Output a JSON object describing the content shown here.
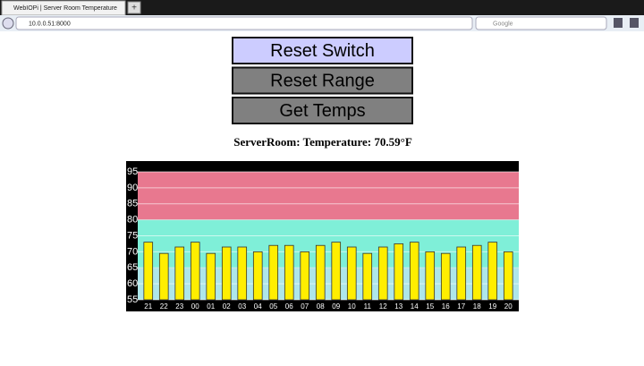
{
  "browser": {
    "tab_title": "WebIOPi | Server Room Temperature",
    "url": "10.0.0.51:8000",
    "search_engine": "Google"
  },
  "buttons": [
    "Reset Switch",
    "Reset Range",
    "Get Temps"
  ],
  "status": "ServerRoom: Temperature: 70.59°F",
  "chart_data": {
    "type": "bar",
    "categories": [
      "21",
      "22",
      "23",
      "00",
      "01",
      "02",
      "03",
      "04",
      "05",
      "06",
      "07",
      "08",
      "09",
      "10",
      "11",
      "12",
      "13",
      "14",
      "15",
      "16",
      "17",
      "18",
      "19",
      "20"
    ],
    "values": [
      73,
      69.5,
      71.5,
      73,
      69.5,
      71.5,
      71.5,
      70,
      72,
      72,
      70,
      72,
      73,
      71.5,
      69.5,
      71.5,
      72.5,
      73,
      70,
      69.5,
      71.5,
      72,
      73,
      70
    ],
    "color": "#ffee00",
    "ylim": [
      55,
      95
    ],
    "yticks": [
      55,
      60,
      65,
      70,
      75,
      80,
      85,
      90,
      95
    ],
    "grid": true,
    "bands": [
      {
        "from": 80,
        "to": 95,
        "color": "#e8788f"
      },
      {
        "from": 65,
        "to": 80,
        "color": "#7fefd8"
      },
      {
        "from": 55,
        "to": 65,
        "color": "#aee6ea"
      }
    ]
  }
}
